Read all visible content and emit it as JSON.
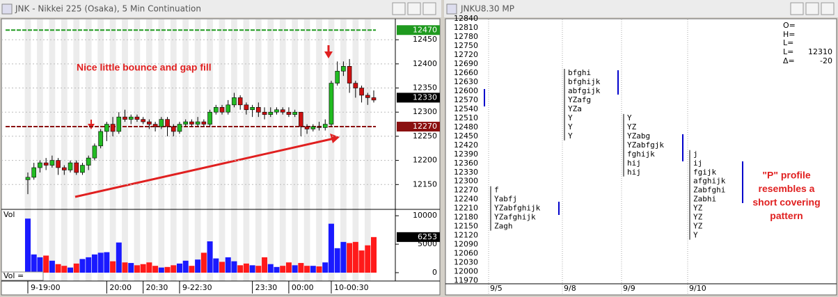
{
  "windows": [
    {
      "title": "JNK - Nikkei 225 (Osaka), 5 Min Continuation"
    },
    {
      "title": "JNKU8.30 MP"
    }
  ],
  "chart_data": [
    {
      "type": "candlestick",
      "annotation": "Nice little bounce and gap fill",
      "up_color": "#22bb22",
      "down_color": "#cc1111",
      "open": [
        12160,
        12165,
        12185,
        12195,
        12190,
        12200,
        12185,
        12180,
        12195,
        12175,
        12190,
        12205,
        12230,
        12260,
        12275,
        12260,
        12290,
        12285,
        12290,
        12285,
        12280,
        12275,
        12270,
        12285,
        12270,
        12260,
        12275,
        12280,
        12275,
        12280,
        12275,
        12300,
        12310,
        12300,
        12315,
        12330,
        12315,
        12305,
        12310,
        12300,
        12295,
        12300,
        12305,
        12300,
        12295,
        12300,
        12270,
        12265,
        12270,
        12268,
        12275,
        12360,
        12385,
        12395,
        12360,
        12350,
        12335,
        12330
      ],
      "high": [
        12175,
        12195,
        12200,
        12205,
        12210,
        12205,
        12190,
        12200,
        12200,
        12195,
        12210,
        12235,
        12265,
        12280,
        12290,
        12300,
        12305,
        12295,
        12295,
        12290,
        12285,
        12280,
        12290,
        12290,
        12275,
        12280,
        12285,
        12285,
        12290,
        12285,
        12305,
        12315,
        12315,
        12325,
        12340,
        12335,
        12320,
        12315,
        12320,
        12310,
        12310,
        12310,
        12310,
        12310,
        12305,
        12300,
        12275,
        12275,
        12280,
        12285,
        12365,
        12405,
        12405,
        12410,
        12365,
        12355,
        12340,
        12345
      ],
      "low": [
        12130,
        12160,
        12175,
        12180,
        12185,
        12170,
        12170,
        12175,
        12170,
        12170,
        12180,
        12200,
        12225,
        12240,
        12250,
        12255,
        12280,
        12275,
        12280,
        12275,
        12265,
        12260,
        12265,
        12250,
        12250,
        12255,
        12270,
        12270,
        12270,
        12270,
        12270,
        12295,
        12295,
        12295,
        12310,
        12305,
        12295,
        12290,
        12290,
        12285,
        12290,
        12295,
        12295,
        12290,
        12290,
        12250,
        12255,
        12260,
        12262,
        12262,
        12270,
        12355,
        12375,
        12340,
        12330,
        12320,
        12315,
        12320
      ],
      "close": [
        12165,
        12185,
        12195,
        12190,
        12200,
        12185,
        12180,
        12195,
        12175,
        12190,
        12205,
        12230,
        12260,
        12275,
        12260,
        12290,
        12285,
        12290,
        12285,
        12280,
        12275,
        12270,
        12285,
        12270,
        12260,
        12275,
        12280,
        12275,
        12280,
        12275,
        12300,
        12310,
        12300,
        12315,
        12330,
        12315,
        12305,
        12310,
        12300,
        12295,
        12300,
        12305,
        12300,
        12295,
        12300,
        12270,
        12265,
        12270,
        12268,
        12275,
        12360,
        12385,
        12395,
        12360,
        12350,
        12335,
        12330,
        12325
      ],
      "ylim": [
        12100,
        12492
      ],
      "yticks": [
        12450,
        12400,
        12350,
        12300,
        12250,
        12200,
        12150
      ],
      "level_lines": [
        {
          "value": 12470,
          "color": "#1f9a1f"
        },
        {
          "value": 12270,
          "color": "#8b1010"
        }
      ],
      "price_markers": [
        {
          "value": 12470,
          "color": "#1f9a1f"
        },
        {
          "value": 12330,
          "color": "#000000"
        },
        {
          "value": 12270,
          "color": "#8b1010"
        }
      ],
      "xticks": [
        {
          "value": 0,
          "label": "9-19:00"
        },
        {
          "value": 13,
          "label": "20:00"
        },
        {
          "value": 19,
          "label": "20:30"
        },
        {
          "value": 25,
          "label": "9-22:30"
        },
        {
          "value": 37,
          "label": "23:30"
        },
        {
          "value": 43,
          "label": "00:00"
        },
        {
          "value": 50,
          "label": "10-00:30"
        }
      ]
    },
    {
      "type": "bar",
      "title": "Vol",
      "footer": "Vol =",
      "up_color": "#1a1aff",
      "down_color": "#ff1a1a",
      "values": [
        9500,
        3200,
        2700,
        3000,
        2100,
        1500,
        1200,
        900,
        1600,
        2400,
        2700,
        3200,
        3500,
        3600,
        2000,
        5300,
        1800,
        1700,
        1300,
        1500,
        1800,
        1200,
        900,
        1000,
        1300,
        1600,
        2100,
        1200,
        2300,
        3500,
        5500,
        2500,
        1900,
        2700,
        2000,
        1300,
        1600,
        1300,
        1200,
        2700,
        1500,
        1000,
        1200,
        1800,
        1300,
        1700,
        1200,
        1200,
        1100,
        1800,
        8600,
        4300,
        5400,
        5200,
        5400,
        3900,
        4800,
        6253
      ],
      "ylim": [
        0,
        11000
      ],
      "yticks": [
        10000,
        5000,
        0
      ]
    },
    {
      "type": "market-profile",
      "ylim": [
        11955,
        12838
      ],
      "yticks": [
        12840,
        12810,
        12780,
        12750,
        12720,
        12690,
        12660,
        12630,
        12600,
        12570,
        12540,
        12510,
        12480,
        12450,
        12420,
        12390,
        12360,
        12330,
        12300,
        12270,
        12240,
        12210,
        12180,
        12150,
        12120,
        12090,
        12060,
        12030,
        12000,
        11970
      ],
      "days": [
        {
          "date": "9/5",
          "rows": [
            {
              "price": 12270,
              "letters": "f"
            },
            {
              "price": 12240,
              "letters": "Yabfj"
            },
            {
              "price": 12210,
              "letters": "YZabfghijk"
            },
            {
              "price": 12180,
              "letters": "YZafghijk"
            },
            {
              "price": 12150,
              "letters": "Zagh"
            }
          ]
        },
        {
          "date": "9/8",
          "rows": [
            {
              "price": 12660,
              "letters": "bfghi"
            },
            {
              "price": 12630,
              "letters": "bfghijk"
            },
            {
              "price": 12600,
              "letters": "abfgijk"
            },
            {
              "price": 12570,
              "letters": "YZafg"
            },
            {
              "price": 12540,
              "letters": "YZa"
            },
            {
              "price": 12510,
              "letters": "Y"
            },
            {
              "price": 12480,
              "letters": "Y"
            },
            {
              "price": 12450,
              "letters": "Y"
            }
          ]
        },
        {
          "date": "9/9",
          "rows": [
            {
              "price": 12510,
              "letters": "Y"
            },
            {
              "price": 12480,
              "letters": "YZ"
            },
            {
              "price": 12450,
              "letters": "YZabg"
            },
            {
              "price": 12420,
              "letters": "YZabfgjk"
            },
            {
              "price": 12390,
              "letters": "fghijk"
            },
            {
              "price": 12360,
              "letters": "hij"
            },
            {
              "price": 12330,
              "letters": "hij"
            }
          ]
        },
        {
          "date": "9/10",
          "rows": [
            {
              "price": 12390,
              "letters": "j"
            },
            {
              "price": 12360,
              "letters": "ij"
            },
            {
              "price": 12330,
              "letters": "fgijk"
            },
            {
              "price": 12300,
              "letters": "afghijk"
            },
            {
              "price": 12270,
              "letters": "Zabfghi"
            },
            {
              "price": 12240,
              "letters": "Zabhi"
            },
            {
              "price": 12210,
              "letters": "YZ"
            },
            {
              "price": 12180,
              "letters": "YZ"
            },
            {
              "price": 12150,
              "letters": "YZ"
            },
            {
              "price": 12120,
              "letters": "Y"
            }
          ]
        }
      ],
      "info": [
        {
          "label": "O="
        },
        {
          "label": "H="
        },
        {
          "label": "L="
        },
        {
          "label": "L=",
          "value": 12310
        },
        {
          "label": "Δ=",
          "value": -20
        }
      ],
      "annotation_lines": [
        "\"P\" profile",
        "resembles a",
        "short covering",
        "pattern"
      ]
    }
  ]
}
